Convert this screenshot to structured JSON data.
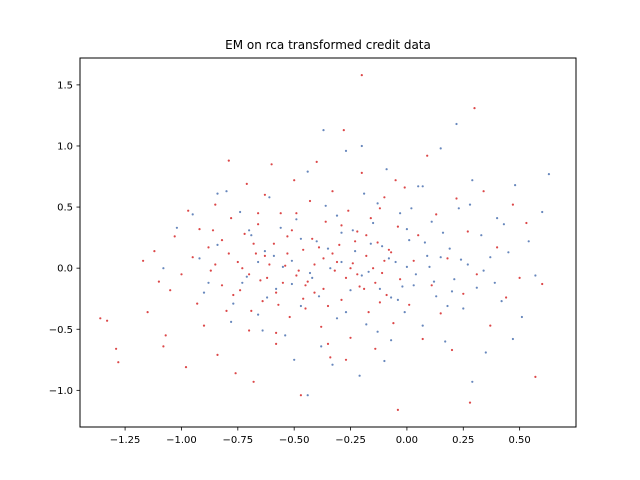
{
  "chart_data": {
    "type": "scatter",
    "title": "EM on rca transformed credit data",
    "xlabel": "",
    "ylabel": "",
    "xlim": [
      -1.45,
      0.75
    ],
    "ylim": [
      -1.3,
      1.72
    ],
    "xticks": [
      -1.25,
      -1.0,
      -0.75,
      -0.5,
      -0.25,
      0.0,
      0.25,
      0.5
    ],
    "xtick_labels": [
      "−1.25",
      "−1.00",
      "−0.75",
      "−0.50",
      "−0.25",
      "0.00",
      "0.25",
      "0.50"
    ],
    "yticks": [
      -1.0,
      -0.5,
      0.0,
      0.5,
      1.0,
      1.5
    ],
    "ytick_labels": [
      "−1.0",
      "−0.5",
      "0.0",
      "0.5",
      "1.0",
      "1.5"
    ],
    "grid": false,
    "legend": "none",
    "series": [
      {
        "color": "#d62728",
        "points": [
          [
            -1.36,
            -0.41
          ],
          [
            -1.33,
            -0.43
          ],
          [
            -1.29,
            -0.66
          ],
          [
            -1.28,
            -0.77
          ],
          [
            -1.17,
            0.06
          ],
          [
            -1.15,
            -0.36
          ],
          [
            -1.12,
            0.14
          ],
          [
            -1.1,
            -0.11
          ],
          [
            -1.08,
            -0.64
          ],
          [
            -1.07,
            -0.55
          ],
          [
            -1.05,
            -0.18
          ],
          [
            -1.03,
            0.26
          ],
          [
            -1.0,
            -0.05
          ],
          [
            -0.98,
            -0.81
          ],
          [
            -0.97,
            0.47
          ],
          [
            -0.95,
            0.09
          ],
          [
            -0.93,
            -0.29
          ],
          [
            -0.92,
            0.32
          ],
          [
            -0.9,
            -0.47
          ],
          [
            -0.88,
            0.17
          ],
          [
            -0.87,
            -0.02
          ],
          [
            -0.85,
            0.52
          ],
          [
            -0.84,
            -0.71
          ],
          [
            -0.82,
            0.23
          ],
          [
            -0.8,
            -0.35
          ],
          [
            -0.79,
            0.88
          ],
          [
            -0.78,
            0.41
          ],
          [
            -0.76,
            -0.86
          ],
          [
            -0.75,
            0.05
          ],
          [
            -0.74,
            -0.18
          ],
          [
            -0.72,
            0.28
          ],
          [
            -0.71,
            0.69
          ],
          [
            -0.7,
            -0.51
          ],
          [
            -0.68,
            -0.93
          ],
          [
            -0.67,
            0.12
          ],
          [
            -0.66,
            0.36
          ],
          [
            -0.64,
            -0.27
          ],
          [
            -0.63,
            0.6
          ],
          [
            -0.62,
            -0.08
          ],
          [
            -0.6,
            0.85
          ],
          [
            -0.59,
            0.2
          ],
          [
            -0.58,
            -0.62
          ],
          [
            -0.56,
            0.45
          ],
          [
            -0.55,
            -0.12
          ],
          [
            -0.54,
            0.02
          ],
          [
            -0.52,
            -0.4
          ],
          [
            -0.51,
            0.31
          ],
          [
            -0.5,
            0.72
          ],
          [
            -0.49,
            -0.06
          ],
          [
            -0.47,
            -1.04
          ],
          [
            -0.46,
            0.15
          ],
          [
            -0.45,
            -0.33
          ],
          [
            -0.43,
            0.55
          ],
          [
            -0.42,
            0.24
          ],
          [
            -0.41,
            -0.2
          ],
          [
            -0.4,
            0.87
          ],
          [
            -0.38,
            -0.48
          ],
          [
            -0.37,
            0.08
          ],
          [
            -0.36,
            0.38
          ],
          [
            -0.34,
            -0.73
          ],
          [
            -0.33,
            0.63
          ],
          [
            -0.32,
            -0.02
          ],
          [
            -0.3,
            0.19
          ],
          [
            -0.29,
            -0.26
          ],
          [
            -0.28,
            1.13
          ],
          [
            -0.26,
            0.47
          ],
          [
            -0.25,
            -0.57
          ],
          [
            -0.24,
            0.04
          ],
          [
            -0.22,
            0.3
          ],
          [
            -0.21,
            -0.15
          ],
          [
            -0.2,
            0.78
          ],
          [
            -0.18,
            0.1
          ],
          [
            -0.17,
            -0.36
          ],
          [
            -0.16,
            0.41
          ],
          [
            -0.14,
            -0.66
          ],
          [
            -0.13,
            0.21
          ],
          [
            -0.11,
            -0.04
          ],
          [
            -0.1,
            0.58
          ],
          [
            -0.09,
            -0.22
          ],
          [
            -0.07,
            0.13
          ],
          [
            -0.06,
            -0.45
          ],
          [
            -0.04,
            0.34
          ],
          [
            -0.03,
            -0.09
          ],
          [
            -0.01,
            0.66
          ],
          [
            0.01,
            -0.3
          ],
          [
            0.03,
            0.06
          ],
          [
            0.05,
            0.27
          ],
          [
            0.07,
            -0.58
          ],
          [
            0.09,
            0.92
          ],
          [
            0.11,
            -0.14
          ],
          [
            0.13,
            0.44
          ],
          [
            0.15,
            -0.37
          ],
          [
            0.18,
            0.08
          ],
          [
            0.2,
            -0.67
          ],
          [
            0.22,
            0.57
          ],
          [
            0.25,
            -0.21
          ],
          [
            0.27,
            0.3
          ],
          [
            0.28,
            -1.1
          ],
          [
            0.31,
            -0.05
          ],
          [
            0.34,
            0.63
          ],
          [
            0.37,
            -0.47
          ],
          [
            0.4,
            0.17
          ],
          [
            0.44,
            -0.24
          ],
          [
            0.47,
            0.52
          ],
          [
            0.5,
            -0.08
          ],
          [
            0.53,
            0.37
          ],
          [
            0.57,
            -0.89
          ],
          [
            0.6,
            -0.13
          ],
          [
            -0.63,
            0.1
          ],
          [
            -0.58,
            -0.2
          ],
          [
            -0.53,
            0.26
          ],
          [
            -0.48,
            -0.02
          ],
          [
            -0.44,
            -0.11
          ],
          [
            -0.39,
            0.17
          ],
          [
            -0.35,
            -0.31
          ],
          [
            -0.31,
            0.05
          ],
          [
            -0.27,
            -0.08
          ],
          [
            -0.23,
            0.22
          ],
          [
            -0.19,
            -0.17
          ],
          [
            -0.15,
            0.0
          ],
          [
            -0.12,
            -0.28
          ],
          [
            -0.08,
            0.15
          ],
          [
            -0.45,
            -0.14
          ],
          [
            -0.41,
            0.03
          ],
          [
            -0.37,
            -0.17
          ],
          [
            -0.33,
            0.12
          ],
          [
            -0.29,
            0.35
          ],
          [
            -0.25,
            0.0
          ],
          [
            -0.7,
            -0.05
          ],
          [
            -0.68,
            0.2
          ],
          [
            -0.65,
            -0.1
          ],
          [
            -0.61,
            0.03
          ],
          [
            -0.57,
            -0.3
          ],
          [
            -0.53,
            0.12
          ],
          [
            -0.49,
            0.45
          ],
          [
            -0.46,
            -0.25
          ],
          [
            -0.22,
            -0.05
          ],
          [
            -0.18,
            0.27
          ],
          [
            -0.14,
            -0.12
          ],
          [
            -0.1,
            0.06
          ],
          [
            -0.85,
            0.03
          ],
          [
            -0.82,
            -0.14
          ],
          [
            -0.79,
            0.12
          ],
          [
            -0.86,
            0.31
          ],
          [
            -0.77,
            -0.22
          ],
          [
            -0.73,
            0.0
          ],
          [
            -0.69,
            -0.35
          ],
          [
            -0.66,
            0.45
          ],
          [
            -0.2,
            1.58
          ],
          [
            -0.04,
            -1.16
          ],
          [
            0.3,
            1.31
          ],
          [
            -0.58,
            -0.53
          ],
          [
            -0.35,
            -0.62
          ],
          [
            -0.27,
            -0.75
          ],
          [
            -0.12,
            0.49
          ],
          [
            -0.05,
            0.72
          ]
        ]
      },
      {
        "color": "#4c72b0",
        "points": [
          [
            -0.92,
            0.08
          ],
          [
            -0.88,
            -0.12
          ],
          [
            -0.84,
            0.19
          ],
          [
            -0.8,
            0.63
          ],
          [
            -0.77,
            -0.29
          ],
          [
            -0.74,
            0.46
          ],
          [
            -0.71,
            -0.07
          ],
          [
            -0.69,
            0.27
          ],
          [
            -0.66,
            -0.38
          ],
          [
            -0.63,
            0.14
          ],
          [
            -0.61,
            0.58
          ],
          [
            -0.58,
            -0.17
          ],
          [
            -0.56,
            0.33
          ],
          [
            -0.54,
            -0.55
          ],
          [
            -0.51,
            0.06
          ],
          [
            -0.49,
            0.4
          ],
          [
            -0.47,
            -0.31
          ],
          [
            -0.44,
            0.79
          ],
          [
            -0.42,
            -0.08
          ],
          [
            -0.4,
            0.22
          ],
          [
            -0.38,
            -0.64
          ],
          [
            -0.36,
            0.51
          ],
          [
            -0.34,
            0.0
          ],
          [
            -0.31,
            -0.41
          ],
          [
            -0.29,
            0.29
          ],
          [
            -0.27,
            0.96
          ],
          [
            -0.25,
            -0.18
          ],
          [
            -0.23,
            0.14
          ],
          [
            -0.21,
            -0.88
          ],
          [
            -0.19,
            0.61
          ],
          [
            -0.17,
            -0.03
          ],
          [
            -0.15,
            0.37
          ],
          [
            -0.13,
            -0.52
          ],
          [
            -0.11,
            0.18
          ],
          [
            -0.09,
            0.81
          ],
          [
            -0.07,
            -0.24
          ],
          [
            -0.05,
            0.05
          ],
          [
            -0.03,
            0.45
          ],
          [
            -0.01,
            -0.36
          ],
          [
            0.01,
            0.23
          ],
          [
            0.03,
            -0.14
          ],
          [
            0.05,
            0.67
          ],
          [
            0.07,
            -0.47
          ],
          [
            0.09,
            0.1
          ],
          [
            0.11,
            0.38
          ],
          [
            0.13,
            -0.23
          ],
          [
            0.15,
            0.98
          ],
          [
            0.17,
            -0.6
          ],
          [
            0.19,
            0.16
          ],
          [
            0.21,
            -0.09
          ],
          [
            0.23,
            0.49
          ],
          [
            0.25,
            -0.33
          ],
          [
            0.27,
            0.03
          ],
          [
            0.29,
            0.72
          ],
          [
            0.31,
            -0.16
          ],
          [
            0.33,
            0.27
          ],
          [
            0.35,
            -0.69
          ],
          [
            0.37,
            0.09
          ],
          [
            0.4,
            0.41
          ],
          [
            0.42,
            -0.27
          ],
          [
            0.45,
            0.13
          ],
          [
            0.48,
            0.68
          ],
          [
            0.51,
            -0.4
          ],
          [
            0.54,
            0.22
          ],
          [
            0.57,
            -0.06
          ],
          [
            0.6,
            0.46
          ],
          [
            0.63,
            0.77
          ],
          [
            0.22,
            1.18
          ],
          [
            0.29,
            -0.93
          ],
          [
            -0.1,
            -0.76
          ],
          [
            -0.33,
            -0.79
          ],
          [
            -0.5,
            -0.75
          ],
          [
            -0.64,
            -0.51
          ],
          [
            -0.78,
            -0.44
          ],
          [
            -0.9,
            -0.2
          ],
          [
            -1.02,
            0.33
          ],
          [
            -1.08,
            0.0
          ],
          [
            -0.95,
            0.44
          ],
          [
            -0.84,
            0.61
          ],
          [
            -0.29,
            0.05
          ],
          [
            -0.24,
            0.31
          ],
          [
            -0.2,
            -0.06
          ],
          [
            -0.16,
            0.2
          ],
          [
            -0.12,
            -0.17
          ],
          [
            -0.08,
            0.08
          ],
          [
            -0.04,
            -0.26
          ],
          [
            0.0,
            0.32
          ],
          [
            0.04,
            -0.05
          ],
          [
            0.08,
            0.21
          ],
          [
            0.12,
            -0.11
          ],
          [
            0.16,
            0.29
          ],
          [
            0.2,
            -0.19
          ],
          [
            0.24,
            0.07
          ],
          [
            -0.55,
            0.01
          ],
          [
            -0.51,
            -0.13
          ],
          [
            -0.47,
            0.24
          ],
          [
            -0.43,
            -0.04
          ],
          [
            -0.39,
            -0.23
          ],
          [
            -0.35,
            0.16
          ],
          [
            -0.31,
            0.43
          ],
          [
            -0.27,
            -0.36
          ],
          [
            -0.59,
            0.1
          ],
          [
            -0.62,
            -0.24
          ],
          [
            -0.66,
            0.05
          ],
          [
            -0.7,
            0.31
          ],
          [
            -0.73,
            -0.12
          ],
          [
            0.28,
            0.52
          ],
          [
            0.34,
            -0.02
          ],
          [
            0.39,
            -0.12
          ],
          [
            0.43,
            0.36
          ],
          [
            0.47,
            -0.58
          ],
          [
            -0.18,
            -0.46
          ],
          [
            -0.13,
            0.53
          ],
          [
            -0.07,
            -0.59
          ],
          [
            0.02,
            0.49
          ],
          [
            0.07,
            0.67
          ],
          [
            -0.37,
            1.13
          ],
          [
            -0.2,
            1.0
          ],
          [
            -0.44,
            -1.04
          ],
          [
            0.0,
            0.01
          ],
          [
            0.1,
            0.01
          ],
          [
            -0.02,
            -0.15
          ],
          [
            0.15,
            0.09
          ],
          [
            0.18,
            -0.31
          ]
        ]
      }
    ]
  }
}
